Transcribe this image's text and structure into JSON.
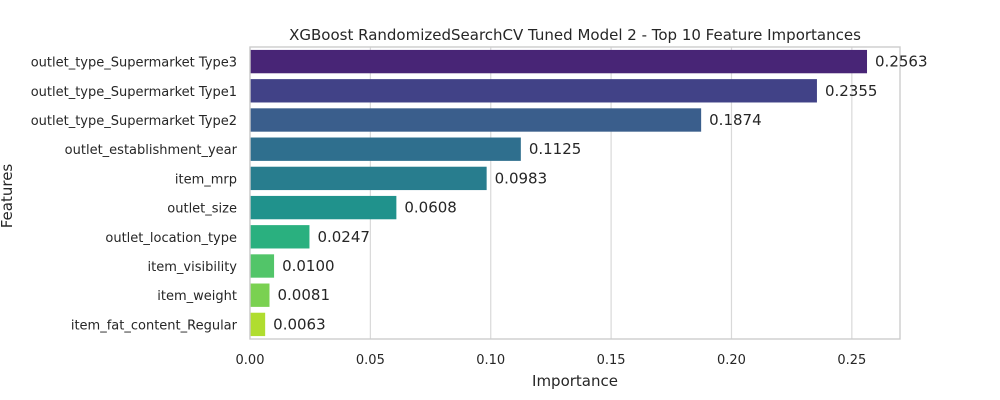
{
  "chart_data": {
    "type": "bar",
    "orientation": "horizontal",
    "title": "XGBoost RandomizedSearchCV Tuned Model 2 - Top 10 Feature Importances",
    "xlabel": "Importance",
    "ylabel": "Features",
    "xlim": [
      0,
      0.27
    ],
    "xticks": [
      0.0,
      0.05,
      0.1,
      0.15,
      0.2,
      0.25
    ],
    "xtick_labels": [
      "0.00",
      "0.05",
      "0.10",
      "0.15",
      "0.20",
      "0.25"
    ],
    "grid": "vertical",
    "categories": [
      "outlet_type_Supermarket Type3",
      "outlet_type_Supermarket Type1",
      "outlet_type_Supermarket Type2",
      "outlet_establishment_year",
      "item_mrp",
      "outlet_size",
      "outlet_location_type",
      "item_visibility",
      "item_weight",
      "item_fat_content_Regular"
    ],
    "values": [
      0.2563,
      0.2355,
      0.1874,
      0.1125,
      0.0983,
      0.0608,
      0.0247,
      0.01,
      0.0081,
      0.0063
    ],
    "value_labels": [
      "0.2563",
      "0.2355",
      "0.1874",
      "0.1125",
      "0.0983",
      "0.0608",
      "0.0247",
      "0.0100",
      "0.0081",
      "0.0063"
    ],
    "colors": [
      "#482576",
      "#414287",
      "#3a5e8c",
      "#2f6f8e",
      "#287d8e",
      "#20928c",
      "#2ab07f",
      "#52c569",
      "#7ad151",
      "#b0dd2f"
    ]
  }
}
